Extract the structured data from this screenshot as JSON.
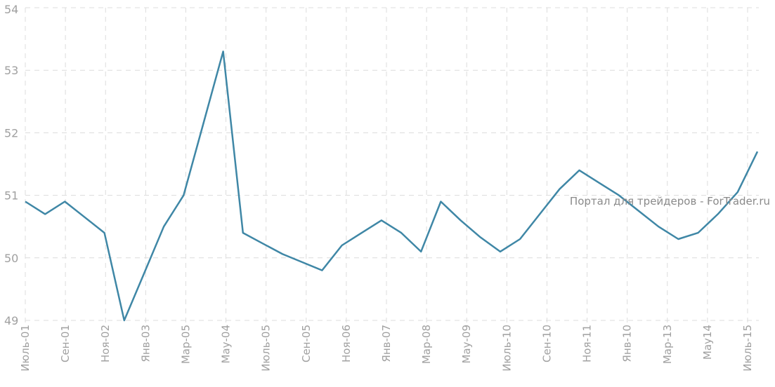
{
  "chart_data": {
    "type": "line",
    "x_labels": [
      "Июль-01",
      "Сен-01",
      "Ноя-02",
      "Янв-03",
      "Мар-05",
      "Мау-04",
      "Июль-05",
      "Сен-05",
      "Ноя-06",
      "Янв-07",
      "Мар-08",
      "Мау-09",
      "Июль-10",
      "Сен-10",
      "Ноя-11",
      "Янв-10",
      "Мар-13",
      "Мау14",
      "Июль-15"
    ],
    "y_ticks": [
      49,
      50,
      51,
      52,
      53,
      54
    ],
    "ylim": [
      49,
      54
    ],
    "grid": true,
    "series": [
      {
        "color": "#3f87a6",
        "values": [
          50.9,
          50.7,
          50.9,
          50.65,
          50.4,
          49.0,
          49.75,
          50.5,
          51.0,
          52.15,
          53.3,
          50.4,
          50.23,
          50.06,
          49.93,
          49.8,
          50.2,
          50.4,
          50.6,
          50.4,
          50.1,
          50.9,
          50.6,
          50.33,
          50.1,
          50.3,
          50.7,
          51.1,
          51.4,
          51.2,
          51.0,
          50.75,
          50.5,
          50.3,
          50.4,
          50.7,
          51.05,
          51.7
        ]
      }
    ],
    "watermark": "Портал для трейдеров - ForTrader.ru"
  }
}
